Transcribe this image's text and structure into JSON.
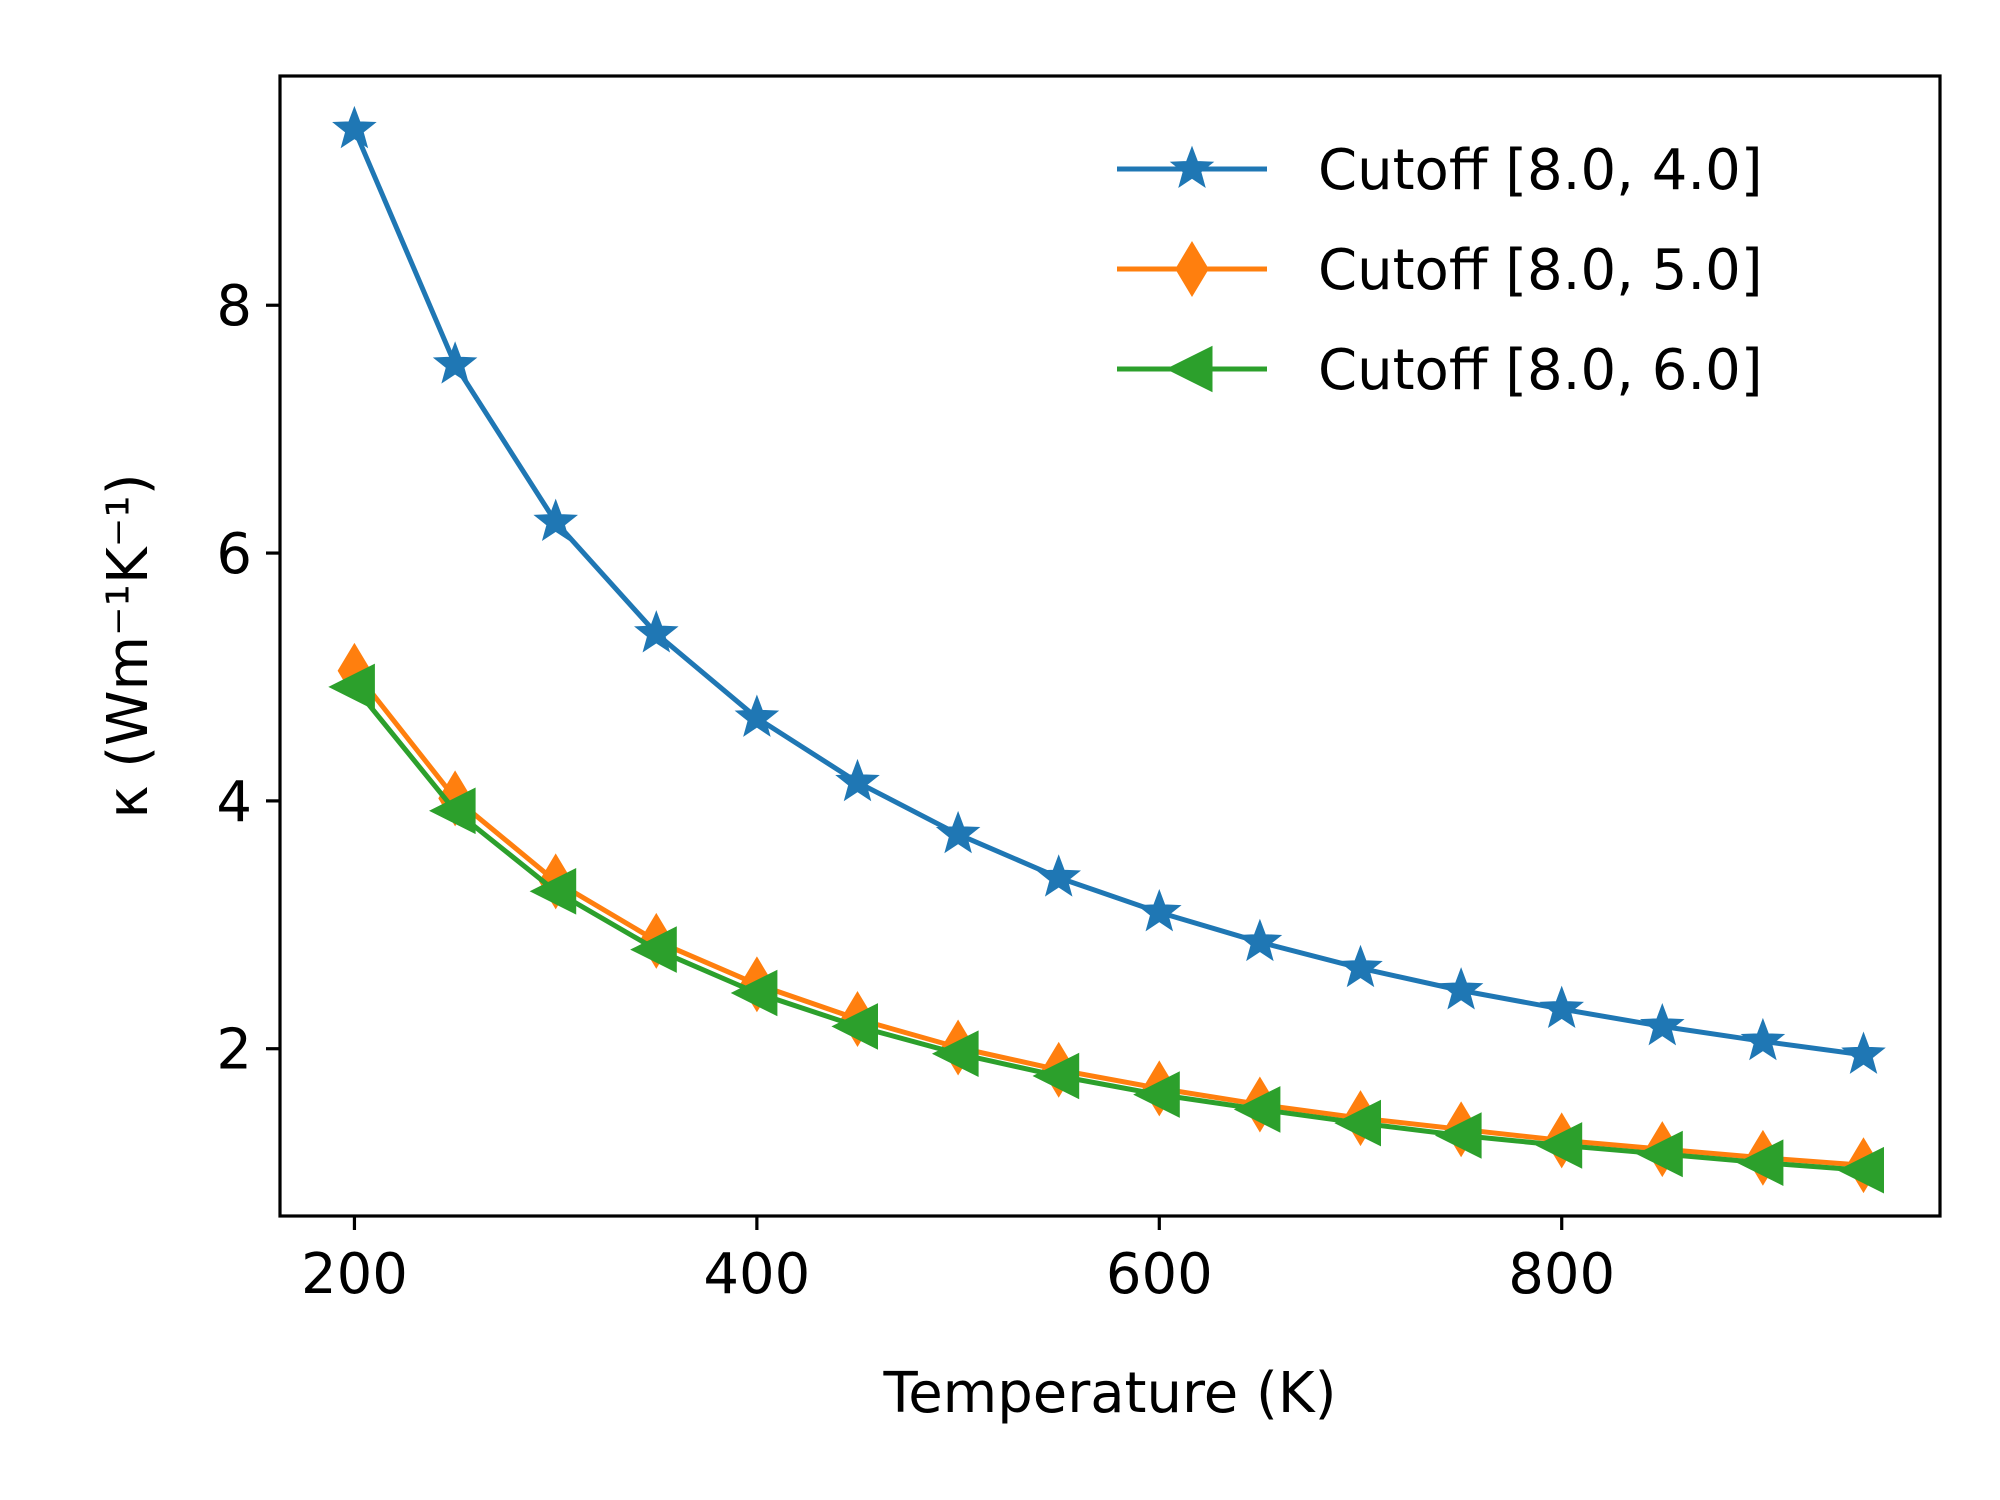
{
  "chart_data": {
    "type": "line",
    "xlabel": "Temperature (K)",
    "ylabel": "κ (Wm⁻¹K⁻¹)",
    "xlim": [
      163,
      988
    ],
    "ylim": [
      0.65,
      9.85
    ],
    "xticks": [
      200,
      400,
      600,
      800
    ],
    "yticks": [
      2,
      4,
      6,
      8
    ],
    "grid": false,
    "legend_position": "upper right",
    "x": [
      200,
      250,
      300,
      350,
      400,
      450,
      500,
      550,
      600,
      650,
      700,
      750,
      800,
      850,
      900,
      950
    ],
    "series": [
      {
        "name": "Cutoff [8.0, 4.0]",
        "color": "#1f77b4",
        "marker": "star",
        "values": [
          9.42,
          7.52,
          6.25,
          5.35,
          4.67,
          4.15,
          3.73,
          3.38,
          3.1,
          2.86,
          2.65,
          2.47,
          2.32,
          2.18,
          2.06,
          1.95
        ]
      },
      {
        "name": "Cutoff [8.0, 5.0]",
        "color": "#ff7f0e",
        "marker": "thin-diamond",
        "values": [
          5.05,
          4.02,
          3.35,
          2.87,
          2.52,
          2.24,
          2.01,
          1.83,
          1.68,
          1.55,
          1.44,
          1.35,
          1.26,
          1.19,
          1.12,
          1.06
        ]
      },
      {
        "name": "Cutoff [8.0, 6.0]",
        "color": "#2ca02c",
        "marker": "triangle-left",
        "values": [
          4.92,
          3.92,
          3.27,
          2.8,
          2.45,
          2.18,
          1.96,
          1.78,
          1.63,
          1.51,
          1.4,
          1.3,
          1.22,
          1.15,
          1.08,
          1.02
        ]
      }
    ]
  }
}
